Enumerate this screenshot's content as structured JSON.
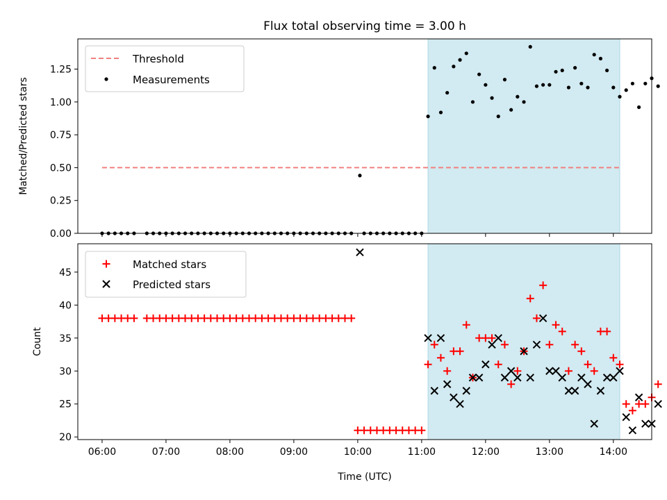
{
  "figure": {
    "title": "Flux total observing time = 3.00 h",
    "xlabel": "Time (UTC)"
  },
  "colors": {
    "threshold": "#f08080",
    "shade": "#add8e6",
    "measurement": "#000000",
    "matched": "#ff0000",
    "predicted": "#000000"
  },
  "chart_data": [
    {
      "type": "scatter",
      "panel": "top",
      "ylabel": "Matched/Predicted stars",
      "xlim_hours": [
        5.62,
        14.6
      ],
      "ylim": [
        0,
        1.48
      ],
      "yticks": [
        "0.00",
        "0.25",
        "0.50",
        "0.75",
        "1.00",
        "1.25"
      ],
      "ytick_values": [
        0,
        0.25,
        0.5,
        0.75,
        1.0,
        1.25
      ],
      "shaded_span": [
        "11:06",
        "14:06"
      ],
      "legend": {
        "placement": "upper-left",
        "entries": [
          "Threshold",
          "Measurements"
        ]
      },
      "threshold": {
        "name": "Threshold",
        "value": 0.5,
        "x_range": [
          "06:00",
          "14:06"
        ]
      },
      "measurements": {
        "name": "Measurements",
        "zero_runs": [
          {
            "from": "06:00",
            "to": "06:30",
            "step_min": 6
          },
          {
            "from": "06:42",
            "to": "09:54",
            "step_min": 6
          },
          {
            "from": "10:06",
            "to": "11:00",
            "step_min": 6
          }
        ],
        "points": [
          [
            "10:02",
            0.44
          ],
          [
            "11:06",
            0.89
          ],
          [
            "11:12",
            1.26
          ],
          [
            "11:18",
            0.92
          ],
          [
            "11:24",
            1.07
          ],
          [
            "11:30",
            1.27
          ],
          [
            "11:36",
            1.32
          ],
          [
            "11:42",
            1.37
          ],
          [
            "11:48",
            1.0
          ],
          [
            "11:54",
            1.21
          ],
          [
            "12:00",
            1.13
          ],
          [
            "12:06",
            1.03
          ],
          [
            "12:12",
            0.89
          ],
          [
            "12:18",
            1.17
          ],
          [
            "12:24",
            0.94
          ],
          [
            "12:30",
            1.04
          ],
          [
            "12:36",
            1.0
          ],
          [
            "12:42",
            1.42
          ],
          [
            "12:48",
            1.12
          ],
          [
            "12:54",
            1.13
          ],
          [
            "13:00",
            1.13
          ],
          [
            "13:06",
            1.23
          ],
          [
            "13:12",
            1.24
          ],
          [
            "13:18",
            1.11
          ],
          [
            "13:24",
            1.26
          ],
          [
            "13:30",
            1.14
          ],
          [
            "13:36",
            1.11
          ],
          [
            "13:42",
            1.36
          ],
          [
            "13:48",
            1.33
          ],
          [
            "13:54",
            1.24
          ],
          [
            "14:00",
            1.11
          ],
          [
            "14:06",
            1.04
          ],
          [
            "14:12",
            1.09
          ],
          [
            "14:18",
            1.14
          ],
          [
            "14:24",
            0.96
          ],
          [
            "14:30",
            1.14
          ],
          [
            "14:36",
            1.18
          ],
          [
            "14:42",
            1.12
          ]
        ]
      }
    },
    {
      "type": "scatter",
      "panel": "bottom",
      "ylabel": "Count",
      "xlim_hours": [
        5.62,
        14.6
      ],
      "ylim": [
        19.6,
        49.3
      ],
      "yticks": [
        "20",
        "25",
        "30",
        "35",
        "40",
        "45"
      ],
      "ytick_values": [
        20,
        25,
        30,
        35,
        40,
        45
      ],
      "xticks": [
        "06:00",
        "07:00",
        "08:00",
        "09:00",
        "10:00",
        "11:00",
        "12:00",
        "13:00",
        "14:00"
      ],
      "shaded_span": [
        "11:06",
        "14:06"
      ],
      "legend": {
        "placement": "upper-left",
        "entries": [
          "Matched stars",
          "Predicted stars"
        ]
      },
      "matched": {
        "name": "Matched stars",
        "runs": [
          {
            "from": "06:00",
            "to": "06:30",
            "step_min": 6,
            "value": 38
          },
          {
            "from": "06:42",
            "to": "09:54",
            "step_min": 6,
            "value": 38
          },
          {
            "from": "10:00",
            "to": "11:00",
            "step_min": 6,
            "value": 21
          }
        ],
        "points": [
          [
            "11:06",
            31
          ],
          [
            "11:12",
            34
          ],
          [
            "11:18",
            32
          ],
          [
            "11:24",
            30
          ],
          [
            "11:30",
            33
          ],
          [
            "11:36",
            33
          ],
          [
            "11:42",
            37
          ],
          [
            "11:48",
            29
          ],
          [
            "11:54",
            35
          ],
          [
            "12:00",
            35
          ],
          [
            "12:06",
            35
          ],
          [
            "12:12",
            31
          ],
          [
            "12:18",
            34
          ],
          [
            "12:24",
            28
          ],
          [
            "12:30",
            30
          ],
          [
            "12:36",
            33
          ],
          [
            "12:42",
            41
          ],
          [
            "12:48",
            38
          ],
          [
            "12:54",
            43
          ],
          [
            "13:00",
            34
          ],
          [
            "13:06",
            37
          ],
          [
            "13:12",
            36
          ],
          [
            "13:18",
            30
          ],
          [
            "13:24",
            34
          ],
          [
            "13:30",
            33
          ],
          [
            "13:36",
            31
          ],
          [
            "13:42",
            30
          ],
          [
            "13:48",
            36
          ],
          [
            "13:54",
            36
          ],
          [
            "14:00",
            32
          ],
          [
            "14:06",
            31
          ],
          [
            "14:12",
            25
          ],
          [
            "14:18",
            24
          ],
          [
            "14:24",
            25
          ],
          [
            "14:30",
            25
          ],
          [
            "14:36",
            26
          ],
          [
            "14:42",
            28
          ]
        ]
      },
      "predicted": {
        "name": "Predicted stars",
        "points": [
          [
            "10:02",
            48
          ],
          [
            "11:06",
            35
          ],
          [
            "11:12",
            27
          ],
          [
            "11:18",
            35
          ],
          [
            "11:24",
            28
          ],
          [
            "11:30",
            26
          ],
          [
            "11:36",
            25
          ],
          [
            "11:42",
            27
          ],
          [
            "11:48",
            29
          ],
          [
            "11:54",
            29
          ],
          [
            "12:00",
            31
          ],
          [
            "12:06",
            34
          ],
          [
            "12:12",
            35
          ],
          [
            "12:18",
            29
          ],
          [
            "12:24",
            30
          ],
          [
            "12:30",
            29
          ],
          [
            "12:36",
            33
          ],
          [
            "12:42",
            29
          ],
          [
            "12:48",
            34
          ],
          [
            "12:54",
            38
          ],
          [
            "13:00",
            30
          ],
          [
            "13:06",
            30
          ],
          [
            "13:12",
            29
          ],
          [
            "13:18",
            27
          ],
          [
            "13:24",
            27
          ],
          [
            "13:30",
            29
          ],
          [
            "13:36",
            28
          ],
          [
            "13:42",
            22
          ],
          [
            "13:48",
            27
          ],
          [
            "13:54",
            29
          ],
          [
            "14:00",
            29
          ],
          [
            "14:06",
            30
          ],
          [
            "14:12",
            23
          ],
          [
            "14:18",
            21
          ],
          [
            "14:24",
            26
          ],
          [
            "14:30",
            22
          ],
          [
            "14:36",
            22
          ],
          [
            "14:42",
            25
          ]
        ]
      }
    }
  ]
}
